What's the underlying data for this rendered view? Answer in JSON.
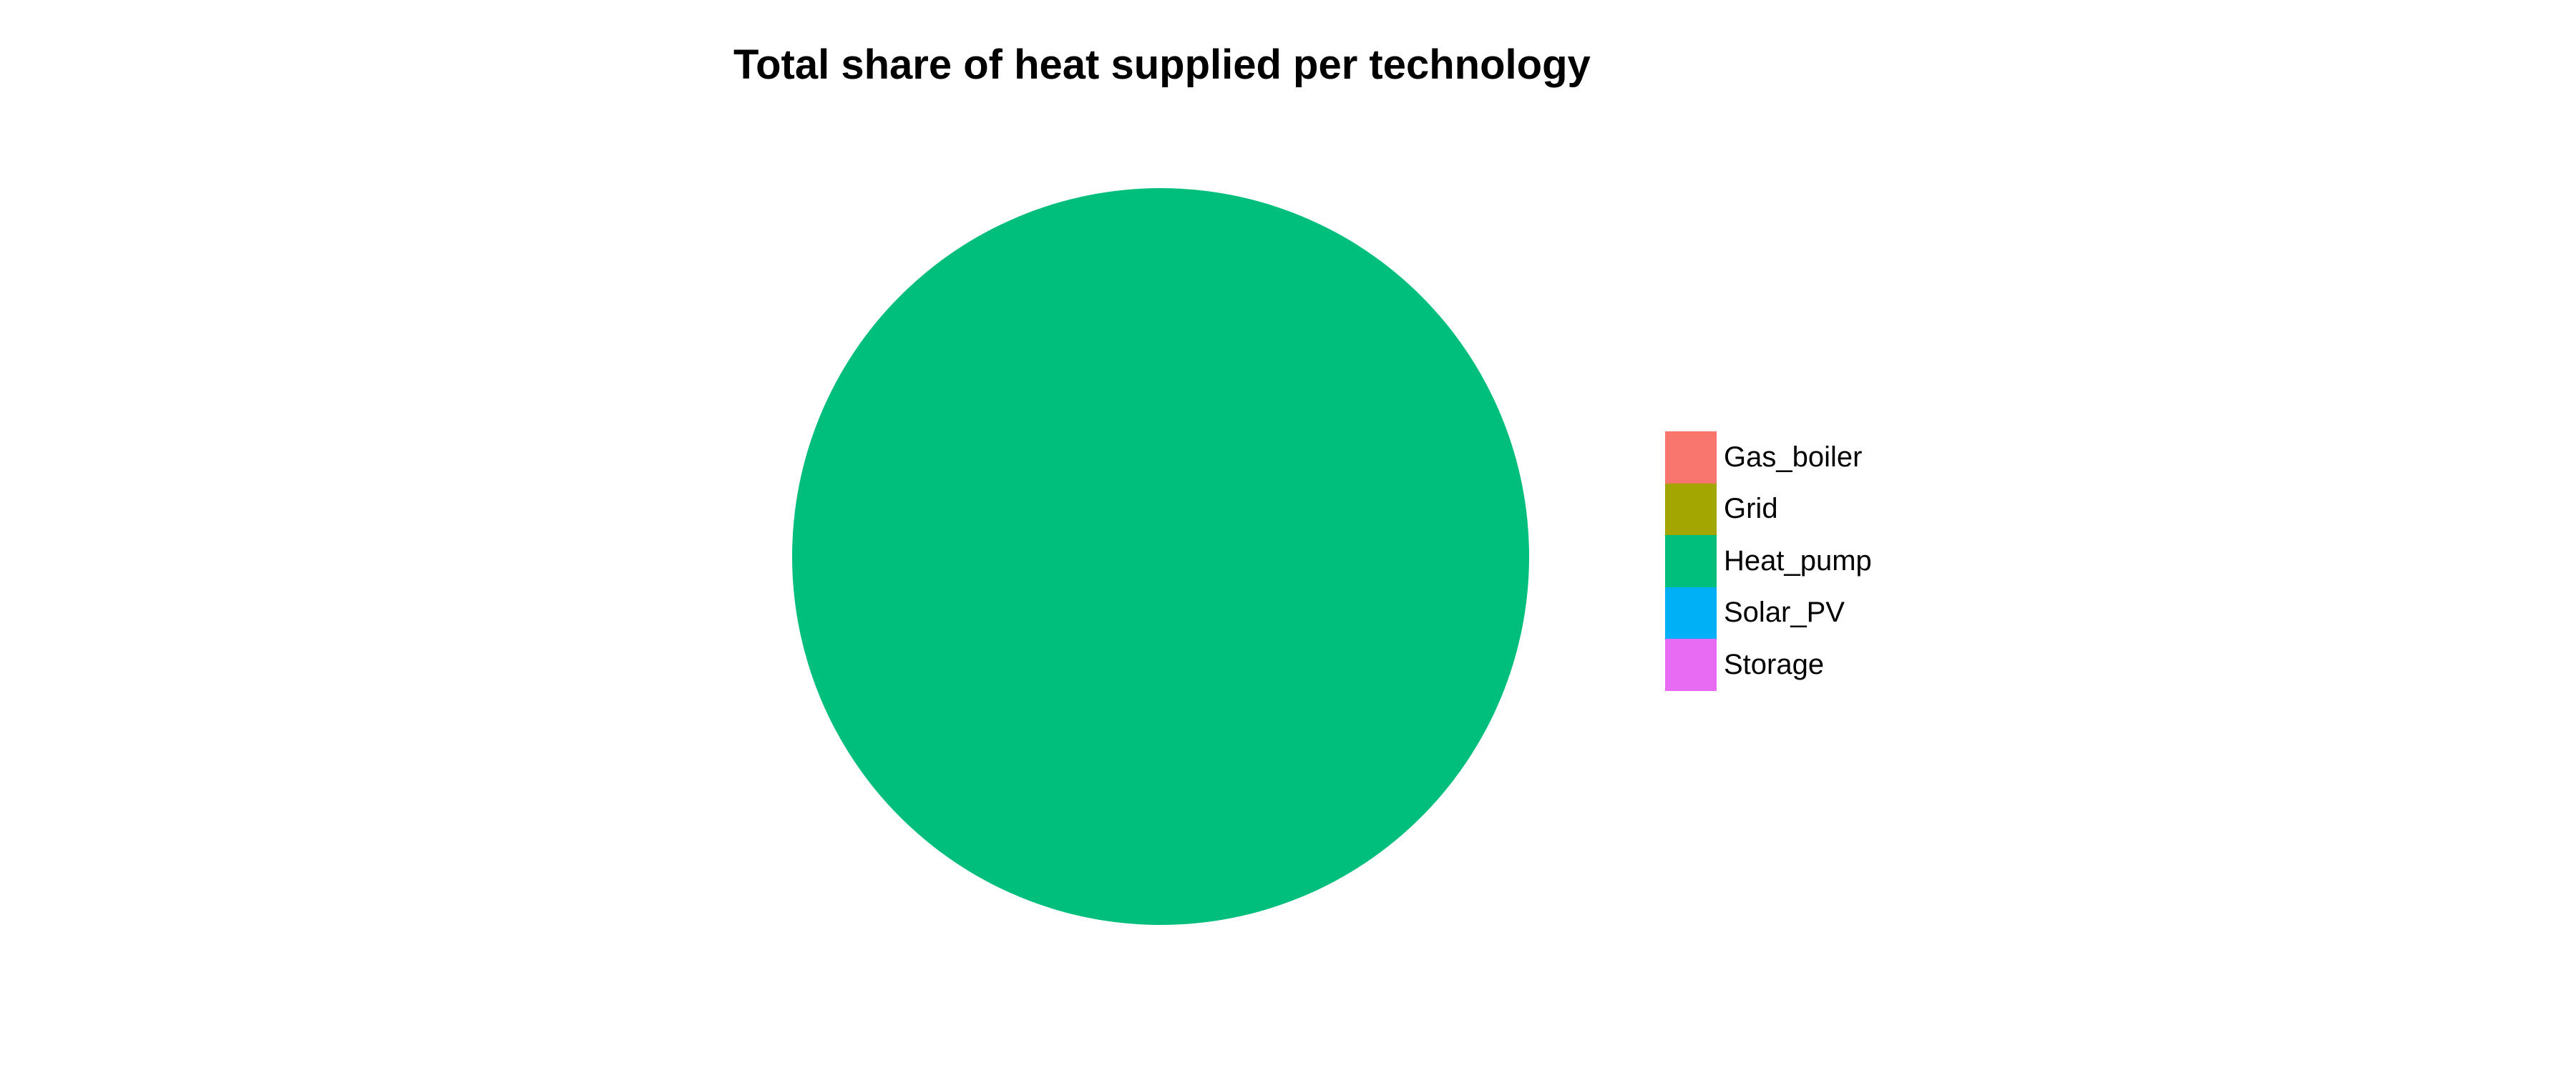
{
  "chart_data": {
    "type": "pie",
    "title": "Total share of heat supplied per technology",
    "categories": [
      "Gas_boiler",
      "Grid",
      "Heat_pump",
      "Solar_PV",
      "Storage"
    ],
    "values": [
      0,
      0,
      100,
      0,
      0
    ],
    "colors": [
      "#F8766D",
      "#A3A500",
      "#00BF7D",
      "#00B0F6",
      "#E76BF3"
    ],
    "legend": {
      "position": "right",
      "entries": [
        {
          "label": "Gas_boiler",
          "color": "#F8766D"
        },
        {
          "label": "Grid",
          "color": "#A3A500"
        },
        {
          "label": "Heat_pump",
          "color": "#00BF7D"
        },
        {
          "label": "Solar_PV",
          "color": "#00B0F6"
        },
        {
          "label": "Storage",
          "color": "#E76BF3"
        }
      ]
    }
  }
}
